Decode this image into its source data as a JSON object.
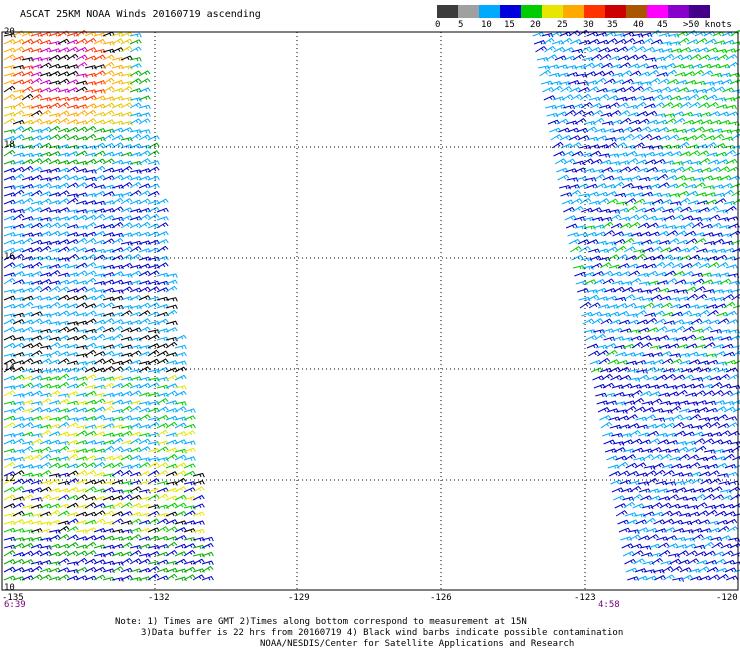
{
  "title": "ASCAT 25KM NOAA Winds 20160719 ascending",
  "colorbar": {
    "segments": [
      {
        "color": "#3c3c3c"
      },
      {
        "color": "#a0a0a0"
      },
      {
        "color": "#00aaff"
      },
      {
        "color": "#0000dd"
      },
      {
        "color": "#00cc00"
      },
      {
        "color": "#e6e600"
      },
      {
        "color": "#ffaa00"
      },
      {
        "color": "#ff3300"
      },
      {
        "color": "#cc0000"
      },
      {
        "color": "#aa5500"
      },
      {
        "color": "#ff00ff"
      },
      {
        "color": "#8800cc"
      },
      {
        "color": "#440088"
      }
    ],
    "labels": [
      "0",
      "5",
      "10",
      "15",
      "20",
      "25",
      "30",
      "35",
      "40",
      "45",
      ">50 knots"
    ]
  },
  "map": {
    "lat_labels": [
      "20",
      "18",
      "16",
      "14",
      "12",
      "10"
    ],
    "lon_labels": [
      "-132",
      "-129",
      "-126",
      "-123",
      "-120"
    ],
    "time_left": "6:39",
    "time_right": "4:58",
    "lon_left_edge": "-135"
  },
  "notes": {
    "line1": "Note: 1) Times are GMT 2)Times along bottom correspond to measurement at 15N",
    "line2": "3)Data buffer is 22 hrs from 20160719 4) Black wind barbs indicate possible contamination",
    "line3": "NOAA/NESDIS/Center for Satellite Applications and Research"
  }
}
